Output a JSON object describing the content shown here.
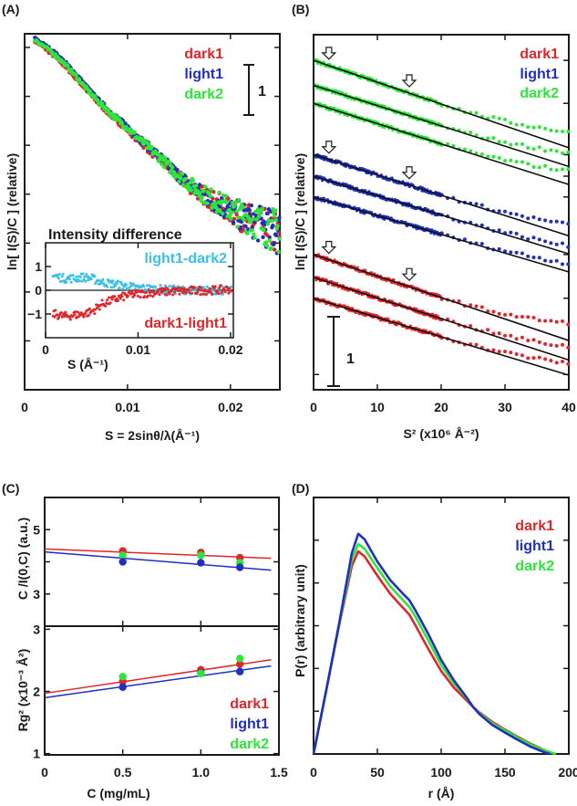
{
  "panels": {
    "a": "(A)",
    "b": "(B)",
    "c": "(C)",
    "d": "(D)"
  },
  "colors": {
    "dark1": "#e0262b",
    "light1": "#1f2fbf",
    "dark2": "#2ee63a",
    "light1_dark2": "#3cc0e8",
    "dark1_light1": "#e0262b",
    "fit_black": "#111111"
  },
  "chart_data": [
    {
      "id": "A",
      "type": "scatter",
      "xlabel": "S = 2sinθ/λ(Å⁻¹)",
      "ylabel": "ln[ I(S)/C ]  (relative)",
      "xlim": [
        0,
        0.0248
      ],
      "ylim": [
        0,
        7.28
      ],
      "xticks": [
        0,
        0.01,
        0.02
      ],
      "xtick_labels": [
        "0",
        "0.01",
        "0.02"
      ],
      "yticks": [
        1,
        2,
        3,
        4,
        5,
        6,
        7
      ],
      "scale_bar": {
        "value": 1,
        "label": "1"
      },
      "legend": [
        "dark1",
        "light1",
        "dark2"
      ],
      "legend_position": "top-right",
      "series": [
        {
          "name": "dark1",
          "x": [
            0.001,
            0.002,
            0.003,
            0.004,
            0.005,
            0.006,
            0.007,
            0.008,
            0.009,
            0.01,
            0.011,
            0.012,
            0.013,
            0.014,
            0.015,
            0.016,
            0.017,
            0.018,
            0.019,
            0.02,
            0.021,
            0.022,
            0.023,
            0.024,
            0.0248
          ],
          "y": [
            7.14,
            6.98,
            6.8,
            6.6,
            6.37,
            6.13,
            5.9,
            5.69,
            5.5,
            5.32,
            5.12,
            4.93,
            4.74,
            4.54,
            4.35,
            4.18,
            4.03,
            3.9,
            3.78,
            3.66,
            3.55,
            3.45,
            3.35,
            3.25,
            3.18
          ]
        },
        {
          "name": "light1",
          "x": [
            0.001,
            0.002,
            0.003,
            0.004,
            0.005,
            0.006,
            0.007,
            0.008,
            0.009,
            0.01,
            0.011,
            0.012,
            0.013,
            0.014,
            0.015,
            0.016,
            0.017,
            0.018,
            0.019,
            0.02,
            0.021,
            0.022,
            0.023,
            0.024,
            0.0248
          ],
          "y": [
            7.18,
            7.04,
            6.88,
            6.68,
            6.45,
            6.2,
            5.96,
            5.75,
            5.56,
            5.37,
            5.17,
            4.98,
            4.79,
            4.58,
            4.38,
            4.2,
            4.04,
            3.9,
            3.78,
            3.66,
            3.56,
            3.46,
            3.36,
            3.26,
            3.19
          ]
        },
        {
          "name": "dark2",
          "x": [
            0.001,
            0.002,
            0.003,
            0.004,
            0.005,
            0.006,
            0.007,
            0.008,
            0.009,
            0.01,
            0.011,
            0.012,
            0.013,
            0.014,
            0.015,
            0.016,
            0.017,
            0.018,
            0.019,
            0.02,
            0.021,
            0.022,
            0.023,
            0.024,
            0.0248
          ],
          "y": [
            7.16,
            7.01,
            6.84,
            6.64,
            6.41,
            6.16,
            5.93,
            5.72,
            5.53,
            5.35,
            5.15,
            4.96,
            4.77,
            4.57,
            4.38,
            4.21,
            4.06,
            3.93,
            3.81,
            3.69,
            3.59,
            3.49,
            3.39,
            3.29,
            3.22
          ]
        }
      ],
      "inset": {
        "title": "Intensity difference",
        "xlabel": "S (Å⁻¹)",
        "xlim": [
          0,
          0.0203
        ],
        "ylim": [
          -2,
          2
        ],
        "xticks": [
          0,
          0.01,
          0.02
        ],
        "xtick_labels": [
          "0",
          "0.01",
          "0.02"
        ],
        "yticks": [
          1,
          0,
          -1
        ],
        "ytick_labels": [
          "1",
          "0",
          "−1"
        ],
        "series": [
          {
            "name": "light1-dark2",
            "x": [
              0.001,
              0.002,
              0.003,
              0.004,
              0.005,
              0.006,
              0.007,
              0.008,
              0.009,
              0.01,
              0.012,
              0.014,
              0.016,
              0.018,
              0.02
            ],
            "y": [
              0.6,
              0.5,
              0.5,
              0.55,
              0.5,
              0.35,
              0.28,
              0.22,
              0.15,
              0.1,
              0.05,
              0.02,
              0.0,
              0.0,
              -0.02
            ]
          },
          {
            "name": "dark1-light1",
            "x": [
              0.001,
              0.002,
              0.003,
              0.004,
              0.005,
              0.006,
              0.007,
              0.008,
              0.009,
              0.01,
              0.012,
              0.014,
              0.016,
              0.018,
              0.02
            ],
            "y": [
              -1.0,
              -1.1,
              -1.05,
              -1.0,
              -0.9,
              -0.6,
              -0.45,
              -0.32,
              -0.2,
              -0.15,
              -0.08,
              -0.04,
              -0.02,
              0.0,
              0.05
            ]
          }
        ]
      }
    },
    {
      "id": "B",
      "type": "scatter",
      "xlabel": "S² (x10⁶  Å⁻²)",
      "ylabel": "ln[ I(S)/C ]  (relative)",
      "xlim": [
        0,
        40
      ],
      "ylim": [
        0,
        5.12
      ],
      "xticks": [
        0,
        10,
        20,
        30,
        40
      ],
      "xtick_labels": [
        "0",
        "10",
        "20",
        "30",
        "40"
      ],
      "yticks": [
        4.75,
        4.13,
        3.39,
        3.08,
        2.78,
        1.95,
        1.32,
        0.22
      ],
      "scale_bar": {
        "value": 1,
        "label": "1"
      },
      "legend": [
        "dark1",
        "light1",
        "dark2"
      ],
      "legend_position": "top-right",
      "guinier_range_arrows_x": [
        2.4,
        15
      ],
      "series": [
        {
          "name": "dark2",
          "fit_y_at_0": 4.75,
          "fit_y_at_40": 3.49,
          "data_y_at_40": 3.72
        },
        {
          "name": "dark2",
          "fit_y_at_0": 4.39,
          "fit_y_at_40": 3.22,
          "data_y_at_40": 3.42
        },
        {
          "name": "dark2",
          "fit_y_at_0": 4.13,
          "fit_y_at_40": 2.96,
          "data_y_at_40": 3.16
        },
        {
          "name": "light1",
          "fit_y_at_0": 3.39,
          "fit_y_at_40": 2.22,
          "data_y_at_40": 2.38
        },
        {
          "name": "light1",
          "fit_y_at_0": 3.08,
          "fit_y_at_40": 1.96,
          "data_y_at_40": 2.07
        },
        {
          "name": "light1",
          "fit_y_at_0": 2.78,
          "fit_y_at_40": 1.7,
          "data_y_at_40": 1.82
        },
        {
          "name": "dark1",
          "fit_y_at_0": 1.95,
          "fit_y_at_40": 0.71,
          "data_y_at_40": 0.96
        },
        {
          "name": "dark1",
          "fit_y_at_0": 1.62,
          "fit_y_at_40": 0.43,
          "data_y_at_40": 0.62
        },
        {
          "name": "dark1",
          "fit_y_at_0": 1.32,
          "fit_y_at_40": 0.21,
          "data_y_at_40": 0.38
        }
      ]
    },
    {
      "id": "C-upper",
      "type": "scatter",
      "ylabel": "C /I(0,C) (a.u.)",
      "xlim": [
        0,
        1.5
      ],
      "ylim": [
        2,
        6
      ],
      "yticks": [
        3,
        4,
        5
      ],
      "ytick_labels": [
        "3",
        "",
        "5"
      ],
      "categories_x": [
        0.5,
        1.0,
        1.25
      ],
      "series": [
        {
          "name": "dark1",
          "y": [
            4.34,
            4.29,
            4.13
          ]
        },
        {
          "name": "dark2",
          "y": [
            4.2,
            4.2,
            3.97
          ]
        },
        {
          "name": "light1",
          "y": [
            4.0,
            3.97,
            3.83
          ]
        }
      ],
      "fits": [
        {
          "name": "dark1",
          "x": [
            0,
            1.45
          ],
          "y": [
            4.4,
            4.11
          ]
        },
        {
          "name": "light1",
          "x": [
            0,
            1.45
          ],
          "y": [
            4.31,
            3.74
          ]
        }
      ]
    },
    {
      "id": "C-lower",
      "type": "scatter",
      "xlabel": "C  (mg/mL)",
      "ylabel": "Rg² (x10⁻³ Å²)",
      "xlim": [
        0,
        1.5
      ],
      "ylim": [
        0.98,
        3.05
      ],
      "xticks": [
        0,
        0.5,
        1.0,
        1.5
      ],
      "xtick_labels": [
        "0",
        "0.5",
        "1.0",
        "1.5"
      ],
      "yticks": [
        1,
        2,
        3
      ],
      "ytick_labels": [
        "1",
        "2",
        "3"
      ],
      "legend": [
        "dark1",
        "light1",
        "dark2"
      ],
      "legend_position": "bottom-right",
      "categories_x": [
        0.5,
        1.0,
        1.25
      ],
      "series": [
        {
          "name": "dark1",
          "y": [
            2.16,
            2.35,
            2.44
          ]
        },
        {
          "name": "light1",
          "y": [
            2.07,
            2.3,
            2.32
          ]
        },
        {
          "name": "dark2",
          "y": [
            2.24,
            2.29,
            2.53
          ]
        }
      ],
      "fits": [
        {
          "name": "dark1",
          "x": [
            0,
            1.45
          ],
          "y": [
            1.97,
            2.51
          ]
        },
        {
          "name": "light1",
          "x": [
            0,
            1.45
          ],
          "y": [
            1.9,
            2.41
          ]
        }
      ]
    },
    {
      "id": "D",
      "type": "line",
      "xlabel": "r (Å)",
      "ylabel": "P(r) (arbitrary unit)",
      "xlim": [
        0,
        200
      ],
      "ylim": [
        0,
        6
      ],
      "xticks": [
        0,
        50,
        100,
        150,
        200
      ],
      "xtick_labels": [
        "0",
        "50",
        "100",
        "150",
        "200"
      ],
      "yticks": [
        1,
        2,
        3,
        4,
        5
      ],
      "legend": [
        "dark1",
        "light1",
        "dark2"
      ],
      "legend_position": "top-right",
      "series": [
        {
          "name": "dark1",
          "x": [
            0,
            10,
            20,
            30,
            35,
            40,
            50,
            60,
            70,
            75,
            80,
            90,
            100,
            110,
            120,
            125,
            130,
            140,
            150,
            160,
            170,
            180,
            189
          ],
          "y": [
            0,
            1.5,
            3.0,
            4.4,
            4.74,
            4.62,
            4.17,
            3.75,
            3.42,
            3.26,
            3.0,
            2.45,
            1.94,
            1.55,
            1.25,
            1.1,
            0.97,
            0.75,
            0.57,
            0.4,
            0.24,
            0.1,
            0
          ]
        },
        {
          "name": "light1",
          "x": [
            0,
            10,
            20,
            30,
            35,
            40,
            50,
            60,
            70,
            75,
            80,
            90,
            100,
            110,
            120,
            125,
            130,
            140,
            150,
            160,
            170,
            180,
            185
          ],
          "y": [
            0,
            1.5,
            3.05,
            4.7,
            5.15,
            5.02,
            4.5,
            4.07,
            3.75,
            3.6,
            3.35,
            2.8,
            2.2,
            1.72,
            1.32,
            1.1,
            0.93,
            0.68,
            0.5,
            0.33,
            0.17,
            0.05,
            0
          ]
        },
        {
          "name": "dark2",
          "x": [
            0,
            10,
            20,
            30,
            35,
            40,
            50,
            60,
            70,
            75,
            80,
            90,
            100,
            110,
            120,
            125,
            130,
            140,
            150,
            160,
            170,
            180,
            190
          ],
          "y": [
            0,
            1.5,
            3.02,
            4.55,
            4.91,
            4.8,
            4.35,
            3.92,
            3.6,
            3.44,
            3.2,
            2.65,
            2.08,
            1.65,
            1.3,
            1.1,
            0.95,
            0.72,
            0.55,
            0.38,
            0.22,
            0.09,
            0
          ]
        }
      ]
    }
  ]
}
